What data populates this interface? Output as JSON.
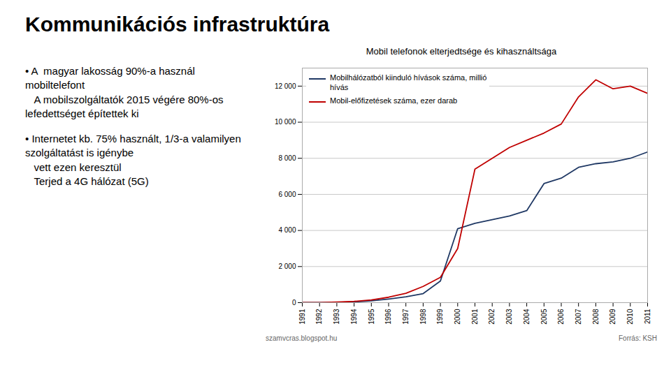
{
  "title": "Kommunikációs infrastruktúra",
  "annotations": [
    "• A  magyar lakosság 90%-a használ mobiltelefont",
    "   A mobilszolgáltatók 2015 végére 80%-os lefedettséget építettek ki",
    "• Internetet kb. 75% használt, 1/3-a valamilyen szolgáltatást is igénybe",
    "   vett ezen keresztül",
    "   Terjed a 4G hálózat (5G)"
  ],
  "chart_data": {
    "type": "line",
    "title": "Mobil telefonok elterjedtsége és kihasználtsága",
    "x": [
      1991,
      1992,
      1993,
      1994,
      1995,
      1996,
      1997,
      1998,
      1999,
      2000,
      2001,
      2002,
      2003,
      2004,
      2005,
      2006,
      2007,
      2008,
      2009,
      2010,
      2011
    ],
    "series": [
      {
        "name": "Mobilhálózatból kiinduló hívások száma, millió\nhívás",
        "color": "#1F3864",
        "values": [
          0,
          5,
          15,
          40,
          100,
          200,
          320,
          500,
          1200,
          4100,
          4400,
          4600,
          4800,
          5100,
          6600,
          6900,
          7500,
          7700,
          7800,
          8000,
          8350
        ]
      },
      {
        "name": "Mobil-előfizetések száma, ezer darab",
        "color": "#C00000",
        "values": [
          0,
          5,
          30,
          70,
          150,
          300,
          520,
          900,
          1400,
          3000,
          7400,
          8000,
          8600,
          9000,
          9400,
          9900,
          11400,
          12350,
          11850,
          12000,
          11600
        ]
      }
    ],
    "xlim": [
      1991,
      2011
    ],
    "xticks": [
      1991,
      1992,
      1993,
      1994,
      1995,
      1996,
      1997,
      1998,
      1999,
      2000,
      2001,
      2002,
      2003,
      2004,
      2005,
      2006,
      2007,
      2008,
      2009,
      2010,
      2011
    ],
    "ylim": [
      0,
      13000
    ],
    "yticks": [
      0,
      {
        "value": 2000,
        "label": "2 000"
      },
      {
        "value": 4000,
        "label": "4 000"
      },
      {
        "value": 6000,
        "label": "6 000"
      },
      {
        "value": 8000,
        "label": "8 000"
      },
      {
        "value": 10000,
        "label": "10 000"
      },
      {
        "value": 12000,
        "label": "12 000"
      }
    ],
    "grid": "y",
    "legend": "upper left",
    "annotations": [
      "szamvcras.blogspot.hu",
      "Forrás: KSH"
    ]
  }
}
